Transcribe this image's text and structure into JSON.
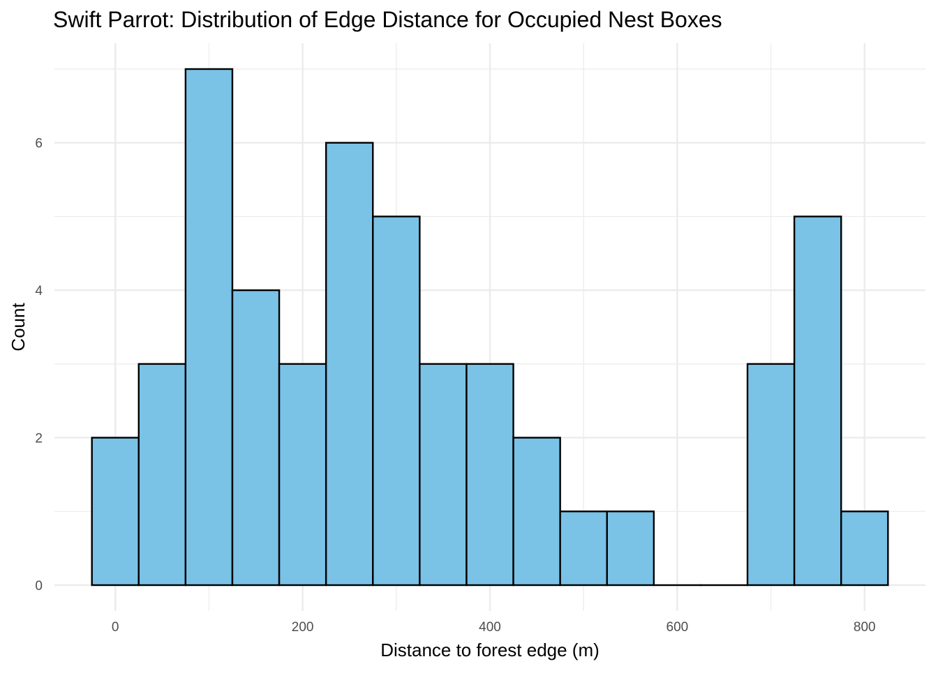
{
  "chart_data": {
    "type": "bar",
    "title": "Swift Parrot: Distribution of Edge Distance for Occupied Nest Boxes",
    "xlabel": "Distance to forest edge (m)",
    "ylabel": "Count",
    "bin_width": 50,
    "bin_start": -25,
    "bins": [
      {
        "x_min": -25,
        "x_max": 25,
        "count": 2
      },
      {
        "x_min": 25,
        "x_max": 75,
        "count": 3
      },
      {
        "x_min": 75,
        "x_max": 125,
        "count": 7
      },
      {
        "x_min": 125,
        "x_max": 175,
        "count": 4
      },
      {
        "x_min": 175,
        "x_max": 225,
        "count": 3
      },
      {
        "x_min": 225,
        "x_max": 275,
        "count": 6
      },
      {
        "x_min": 275,
        "x_max": 325,
        "count": 5
      },
      {
        "x_min": 325,
        "x_max": 375,
        "count": 3
      },
      {
        "x_min": 375,
        "x_max": 425,
        "count": 3
      },
      {
        "x_min": 425,
        "x_max": 475,
        "count": 2
      },
      {
        "x_min": 475,
        "x_max": 525,
        "count": 1
      },
      {
        "x_min": 525,
        "x_max": 575,
        "count": 1
      },
      {
        "x_min": 575,
        "x_max": 625,
        "count": 0
      },
      {
        "x_min": 625,
        "x_max": 675,
        "count": 0
      },
      {
        "x_min": 675,
        "x_max": 725,
        "count": 3
      },
      {
        "x_min": 725,
        "x_max": 775,
        "count": 5
      },
      {
        "x_min": 775,
        "x_max": 825,
        "count": 1
      }
    ],
    "xlim": [
      -65,
      865
    ],
    "ylim": [
      -0.35,
      7.35
    ],
    "x_ticks": [
      0,
      200,
      400,
      600,
      800
    ],
    "y_ticks": [
      0,
      2,
      4,
      6
    ],
    "x_minor_gridlines": [
      100,
      300,
      500,
      700
    ],
    "y_minor_gridlines": [
      1,
      3,
      5,
      7
    ],
    "grid": true,
    "bar_fill": "#7AC2E6",
    "bar_stroke": "#000000",
    "gridline_color": "#EBEBEB",
    "background": "#FFFFFF"
  }
}
